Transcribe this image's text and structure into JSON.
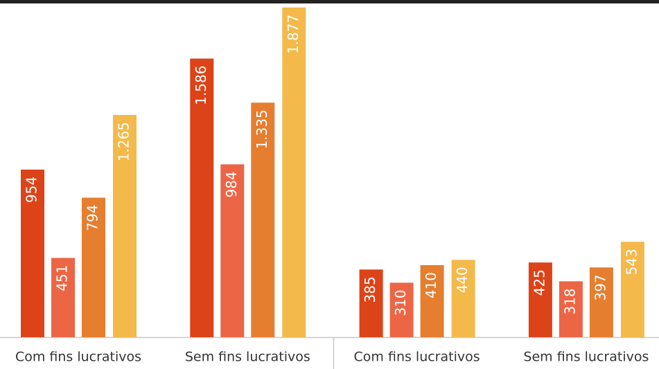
{
  "chart_data": {
    "type": "bar",
    "categories": [
      "Com fins lucrativos",
      "Sem fins lucrativos",
      "Com fins lucrativos",
      "Sem fins lucrativos"
    ],
    "series": [
      {
        "color": "#dc4318",
        "values": [
          954,
          1586,
          385,
          425
        ],
        "value_labels": [
          "954",
          "1.586",
          "385",
          "425"
        ]
      },
      {
        "color": "#ec6645",
        "values": [
          451,
          984,
          310,
          318
        ],
        "value_labels": [
          "451",
          "984",
          "310",
          "318"
        ]
      },
      {
        "color": "#e57e2e",
        "values": [
          794,
          1335,
          410,
          397
        ],
        "value_labels": [
          "794",
          "1.335",
          "410",
          "397"
        ]
      },
      {
        "color": "#f3b94b",
        "values": [
          1265,
          1877,
          440,
          543
        ],
        "value_labels": [
          "1.265",
          "1.877",
          "440",
          "543"
        ]
      }
    ],
    "ylim": [
      0,
      1880
    ]
  }
}
